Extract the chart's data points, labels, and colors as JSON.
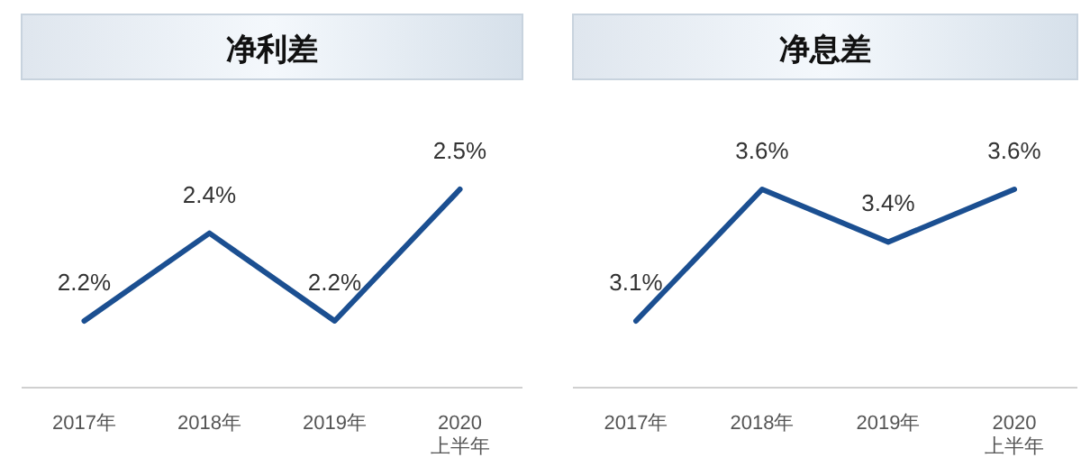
{
  "chart_data": [
    {
      "type": "line",
      "title": "净利差",
      "categories": [
        "2017年",
        "2018年",
        "2019年",
        "2020\n上半年"
      ],
      "series": [
        {
          "color": "#1b4f91",
          "values": [
            2.2,
            2.4,
            2.2,
            2.5
          ],
          "value_labels": [
            "2.2%",
            "2.4%",
            "2.2%",
            "2.5%"
          ]
        }
      ],
      "marker": "none",
      "line_style": "solid"
    },
    {
      "type": "line",
      "title": "净息差",
      "categories": [
        "2017年",
        "2018年",
        "2019年",
        "2020\n上半年"
      ],
      "series": [
        {
          "color": "#1b4f91",
          "values": [
            3.1,
            3.6,
            3.4,
            3.6
          ],
          "value_labels": [
            "3.1%",
            "3.6%",
            "3.4%",
            "3.6%"
          ]
        }
      ],
      "marker": "none",
      "line_style": "solid"
    }
  ]
}
